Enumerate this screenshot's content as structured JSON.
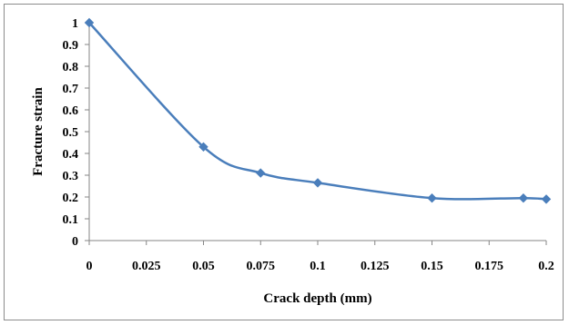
{
  "chart_data": {
    "type": "line",
    "title": "",
    "xlabel": "Crack depth (mm)",
    "ylabel": "Fracture strain",
    "x_ticks": [
      "0",
      "0.025",
      "0.05",
      "0.075",
      "0.1",
      "0.125",
      "0.15",
      "0.175",
      "0.2"
    ],
    "y_ticks": [
      "0",
      "0.1",
      "0.2",
      "0.3",
      "0.4",
      "0.5",
      "0.6",
      "0.7",
      "0.8",
      "0.9",
      "1"
    ],
    "xlim": [
      0,
      0.2
    ],
    "ylim": [
      0,
      1
    ],
    "grid": false,
    "legend": "none",
    "smoothed": true,
    "marker": "diamond",
    "series": [
      {
        "x": [
          0,
          0.05,
          0.075,
          0.1,
          0.15,
          0.19,
          0.2
        ],
        "y": [
          1.0,
          0.43,
          0.31,
          0.265,
          0.195,
          0.195,
          0.19
        ],
        "color": "#4a7ebb"
      }
    ]
  }
}
